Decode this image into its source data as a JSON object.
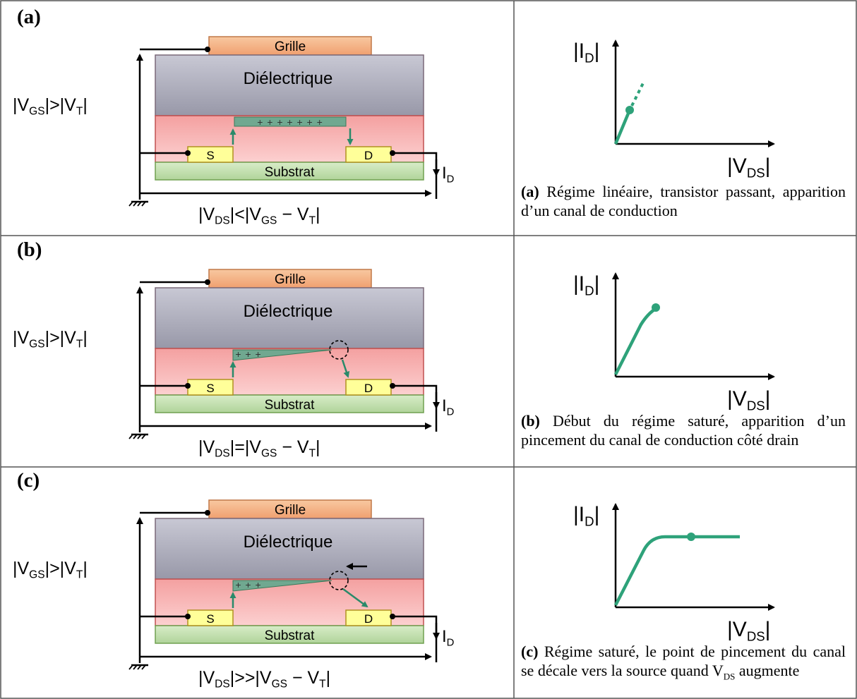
{
  "rows": [
    {
      "label": "(a)",
      "gate": "Grille",
      "dielectric": "Diélectrique",
      "source": "S",
      "drain": "D",
      "substrate": "Substrat",
      "charges": "+ + + + + + +",
      "vgs": {
        "lhs_base": "|V",
        "lhs_sub": "GS",
        "op": "|>|V",
        "rhs_sub": "T",
        "end": "|"
      },
      "vds": {
        "a": "|V",
        "a_sub": "DS",
        "op": "|<|V",
        "b_sub": "GS",
        "mid": " − V",
        "c_sub": "T",
        "end": "|"
      },
      "id": {
        "base": "I",
        "sub": "D"
      },
      "graph": {
        "y": "|I",
        "y_sub": "D",
        "y_end": "|",
        "x": "|V",
        "x_sub": "DS",
        "x_end": "|"
      },
      "caption_tag": "(a)",
      "caption_text": "Régime linéaire, transistor passant, apparition d’un canal de conduction"
    },
    {
      "label": "(b)",
      "gate": "Grille",
      "dielectric": "Diélectrique",
      "source": "S",
      "drain": "D",
      "substrate": "Substrat",
      "charges": "+ + +",
      "vgs": {
        "lhs_base": "|V",
        "lhs_sub": "GS",
        "op": "|>|V",
        "rhs_sub": "T",
        "end": "|"
      },
      "vds": {
        "a": "|V",
        "a_sub": "DS",
        "op": "|=|V",
        "b_sub": "GS",
        "mid": " − V",
        "c_sub": "T",
        "end": "|"
      },
      "id": {
        "base": "I",
        "sub": "D"
      },
      "graph": {
        "y": "|I",
        "y_sub": "D",
        "y_end": "|",
        "x": "|V",
        "x_sub": "DS",
        "x_end": "|"
      },
      "caption_tag": "(b)",
      "caption_text": "Début du régime saturé, apparition d’un pincement du canal de conduction côté drain"
    },
    {
      "label": "(c)",
      "gate": "Grille",
      "dielectric": "Diélectrique",
      "source": "S",
      "drain": "D",
      "substrate": "Substrat",
      "charges": "+ + +",
      "vgs": {
        "lhs_base": "|V",
        "lhs_sub": "GS",
        "op": "|>|V",
        "rhs_sub": "T",
        "end": "|"
      },
      "vds": {
        "a": "|V",
        "a_sub": "DS",
        "op": "|>>|V",
        "b_sub": "GS",
        "mid": " − V",
        "c_sub": "T",
        "end": "|"
      },
      "id": {
        "base": "I",
        "sub": "D"
      },
      "graph": {
        "y": "|I",
        "y_sub": "D",
        "y_end": "|",
        "x": "|V",
        "x_sub": "DS",
        "x_end": "|"
      },
      "caption_tag": "(c)",
      "caption_text": "Régime saturé, le point de pincement du canal se décale vers la source quand ",
      "caption_vds": "V",
      "caption_vds_sub": "DS",
      "caption_tail": " augmente"
    }
  ],
  "colors": {
    "gate": "#f4b183",
    "dielectric": "#b4b4c4",
    "semiconductor": "#f8a8a8",
    "contact": "#ffff99",
    "substrate": "#c5e0b4",
    "channel": "#70a890",
    "arrow": "#2a8a6a",
    "curve": "#2ea27a"
  }
}
